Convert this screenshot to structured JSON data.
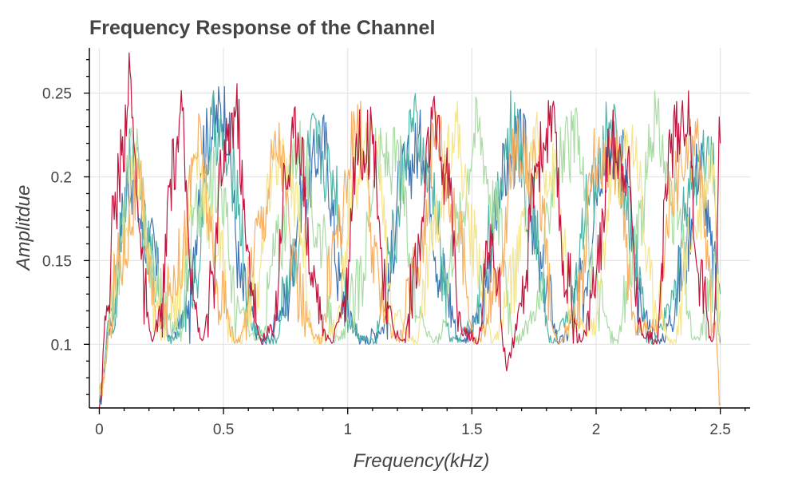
{
  "chart_data": {
    "type": "line",
    "title": "Frequency Response of the Channel",
    "xlabel": "Frequency(kHz)",
    "ylabel": "Amplitdue",
    "xlim": [
      -0.04,
      2.62
    ],
    "ylim": [
      0.062,
      0.277
    ],
    "x_ticks": [
      0,
      0.5,
      1,
      1.5,
      2,
      2.5
    ],
    "x_tick_labels": [
      "0",
      "0.5",
      "1",
      "1.5",
      "2",
      "2.5"
    ],
    "y_ticks": [
      0.1,
      0.15,
      0.2,
      0.25
    ],
    "y_tick_labels": [
      "0.1",
      "0.15",
      "0.2",
      "0.25"
    ],
    "grid": true,
    "series": [
      {
        "name": "blue",
        "color": "#3f74b3",
        "x": [
          0,
          0.04,
          0.12,
          0.2,
          0.28,
          0.36,
          0.42,
          0.5,
          0.58,
          0.66,
          0.74,
          0.82,
          0.9,
          0.98,
          1.06,
          1.14,
          1.22,
          1.3,
          1.38,
          1.46,
          1.54,
          1.62,
          1.7,
          1.78,
          1.86,
          1.94,
          2.02,
          2.1,
          2.18,
          2.26,
          2.34,
          2.42,
          2.47,
          2.5
        ],
        "values": [
          0.065,
          0.11,
          0.2,
          0.16,
          0.105,
          0.12,
          0.22,
          0.24,
          0.13,
          0.1,
          0.12,
          0.19,
          0.22,
          0.13,
          0.1,
          0.11,
          0.2,
          0.22,
          0.14,
          0.1,
          0.12,
          0.2,
          0.22,
          0.14,
          0.1,
          0.13,
          0.21,
          0.22,
          0.12,
          0.1,
          0.14,
          0.21,
          0.15,
          0.1
        ]
      },
      {
        "name": "teal",
        "color": "#4fb4a6",
        "x": [
          0,
          0.05,
          0.13,
          0.21,
          0.3,
          0.38,
          0.46,
          0.54,
          0.62,
          0.7,
          0.78,
          0.86,
          0.94,
          1.02,
          1.1,
          1.18,
          1.26,
          1.34,
          1.42,
          1.5,
          1.58,
          1.66,
          1.74,
          1.82,
          1.9,
          1.98,
          2.06,
          2.14,
          2.22,
          2.3,
          2.38,
          2.46,
          2.5
        ],
        "values": [
          0.07,
          0.12,
          0.21,
          0.15,
          0.1,
          0.14,
          0.23,
          0.2,
          0.11,
          0.1,
          0.15,
          0.22,
          0.2,
          0.11,
          0.1,
          0.16,
          0.23,
          0.19,
          0.1,
          0.11,
          0.17,
          0.23,
          0.18,
          0.1,
          0.12,
          0.19,
          0.23,
          0.17,
          0.1,
          0.12,
          0.2,
          0.22,
          0.13
        ]
      },
      {
        "name": "green",
        "color": "#a8dca4",
        "x": [
          0,
          0.06,
          0.14,
          0.22,
          0.3,
          0.4,
          0.48,
          0.56,
          0.64,
          0.72,
          0.8,
          0.88,
          0.96,
          1.04,
          1.12,
          1.2,
          1.28,
          1.36,
          1.44,
          1.52,
          1.6,
          1.68,
          1.76,
          1.84,
          1.92,
          2,
          2.08,
          2.16,
          2.24,
          2.32,
          2.4,
          2.48,
          2.5
        ],
        "values": [
          0.07,
          0.13,
          0.22,
          0.14,
          0.11,
          0.18,
          0.2,
          0.12,
          0.1,
          0.16,
          0.22,
          0.17,
          0.1,
          0.13,
          0.21,
          0.21,
          0.12,
          0.1,
          0.17,
          0.23,
          0.18,
          0.1,
          0.12,
          0.21,
          0.22,
          0.13,
          0.1,
          0.16,
          0.23,
          0.18,
          0.1,
          0.14,
          0.12
        ]
      },
      {
        "name": "yellow",
        "color": "#f5e58c",
        "x": [
          0,
          0.07,
          0.15,
          0.23,
          0.31,
          0.39,
          0.47,
          0.55,
          0.63,
          0.71,
          0.79,
          0.87,
          0.95,
          1.03,
          1.11,
          1.19,
          1.27,
          1.35,
          1.43,
          1.51,
          1.59,
          1.67,
          1.75,
          1.83,
          1.91,
          1.99,
          2.07,
          2.15,
          2.23,
          2.31,
          2.39,
          2.47,
          2.5
        ],
        "values": [
          0.07,
          0.14,
          0.2,
          0.12,
          0.13,
          0.21,
          0.16,
          0.1,
          0.13,
          0.21,
          0.19,
          0.1,
          0.11,
          0.2,
          0.22,
          0.12,
          0.1,
          0.17,
          0.23,
          0.16,
          0.1,
          0.14,
          0.22,
          0.2,
          0.11,
          0.11,
          0.2,
          0.22,
          0.13,
          0.1,
          0.17,
          0.21,
          0.1
        ]
      },
      {
        "name": "orange",
        "color": "#f8b063",
        "x": [
          0,
          0.08,
          0.16,
          0.24,
          0.32,
          0.4,
          0.48,
          0.56,
          0.64,
          0.72,
          0.8,
          0.88,
          0.96,
          1.04,
          1.12,
          1.2,
          1.28,
          1.36,
          1.44,
          1.52,
          1.6,
          1.68,
          1.76,
          1.84,
          1.92,
          2,
          2.08,
          2.16,
          2.24,
          2.32,
          2.4,
          2.48,
          2.5
        ],
        "values": [
          0.07,
          0.15,
          0.19,
          0.11,
          0.15,
          0.22,
          0.13,
          0.1,
          0.17,
          0.22,
          0.13,
          0.1,
          0.17,
          0.23,
          0.14,
          0.1,
          0.15,
          0.23,
          0.17,
          0.1,
          0.13,
          0.22,
          0.2,
          0.1,
          0.12,
          0.21,
          0.21,
          0.11,
          0.11,
          0.2,
          0.22,
          0.11,
          0.065
        ]
      },
      {
        "name": "crimson",
        "color": "#c1153e",
        "x": [
          0,
          0.03,
          0.06,
          0.09,
          0.12,
          0.15,
          0.18,
          0.21,
          0.25,
          0.29,
          0.33,
          0.37,
          0.41,
          0.45,
          0.5,
          0.55,
          0.6,
          0.65,
          0.7,
          0.75,
          0.8,
          0.86,
          0.92,
          0.98,
          1.04,
          1.1,
          1.16,
          1.22,
          1.28,
          1.34,
          1.4,
          1.46,
          1.52,
          1.58,
          1.64,
          1.7,
          1.76,
          1.82,
          1.88,
          1.94,
          2,
          2.06,
          2.12,
          2.18,
          2.24,
          2.3,
          2.36,
          2.42,
          2.47,
          2.5
        ],
        "values": [
          0.065,
          0.12,
          0.18,
          0.21,
          0.26,
          0.2,
          0.13,
          0.1,
          0.12,
          0.2,
          0.23,
          0.15,
          0.1,
          0.13,
          0.21,
          0.24,
          0.15,
          0.1,
          0.11,
          0.2,
          0.23,
          0.14,
          0.1,
          0.12,
          0.22,
          0.22,
          0.12,
          0.1,
          0.15,
          0.23,
          0.2,
          0.11,
          0.1,
          0.17,
          0.09,
          0.12,
          0.21,
          0.23,
          0.14,
          0.1,
          0.14,
          0.22,
          0.21,
          0.11,
          0.1,
          0.22,
          0.24,
          0.14,
          0.1,
          0.22
        ]
      }
    ]
  }
}
